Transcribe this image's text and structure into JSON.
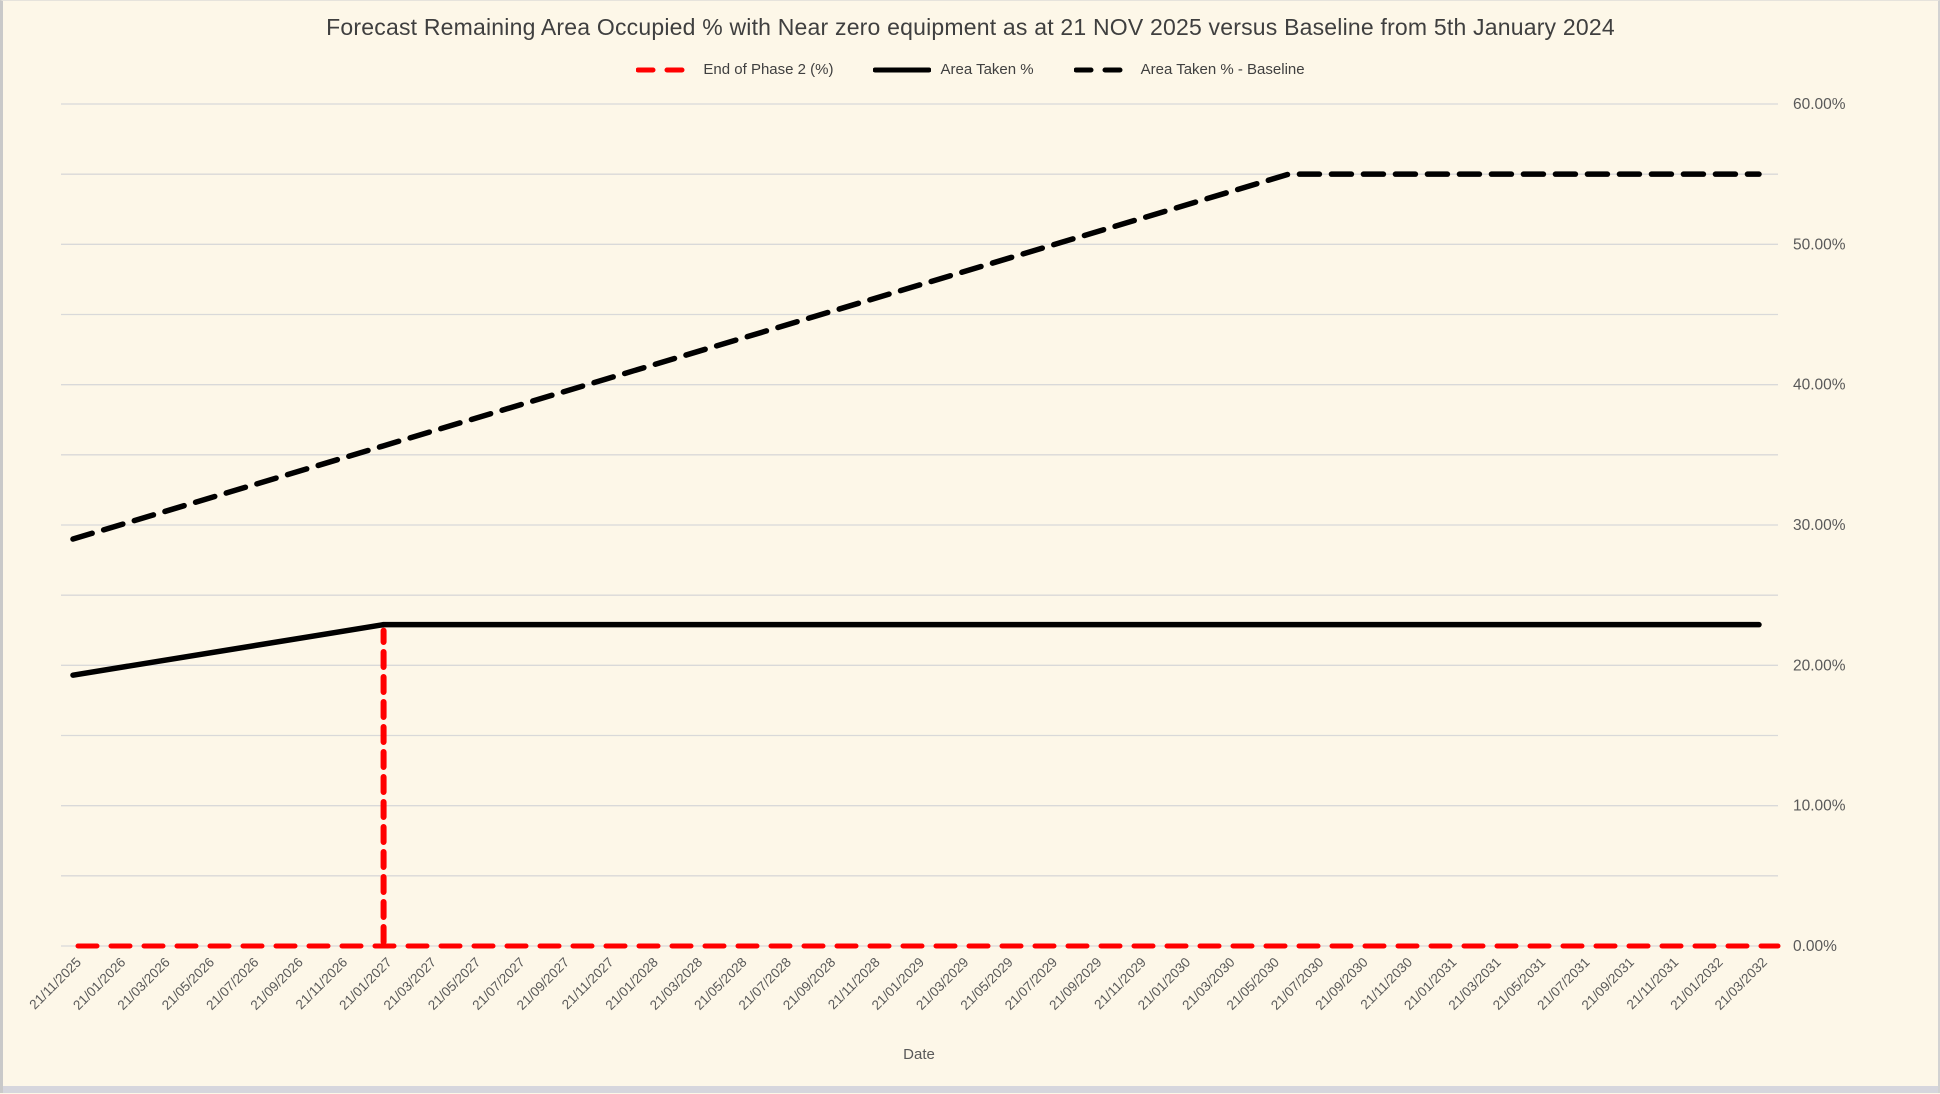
{
  "window": {
    "background": "#FDF7E8",
    "grid_color": "#D9D9D9",
    "axis_text_color": "#595959",
    "title_color": "#3F3F3F"
  },
  "chart_data": {
    "type": "line",
    "title": "Forecast Remaining Area Occupied % with Near zero equipment as at 21 NOV 2025 versus Baseline from 5th January 2024",
    "xlabel": "Date",
    "ylabel": "",
    "ylim": [
      0,
      60
    ],
    "grid": true,
    "gridline_step_pct": 5,
    "legend_position": "top-center",
    "y_axis_side": "right",
    "y_ticks": [
      {
        "label": "0.00%",
        "value": 0
      },
      {
        "label": "10.00%",
        "value": 10
      },
      {
        "label": "20.00%",
        "value": 20
      },
      {
        "label": "30.00%",
        "value": 30
      },
      {
        "label": "40.00%",
        "value": 40
      },
      {
        "label": "50.00%",
        "value": 50
      },
      {
        "label": "60.00%",
        "value": 60
      }
    ],
    "x_categories": [
      "21/11/2025",
      "21/01/2026",
      "21/03/2026",
      "21/05/2026",
      "21/07/2026",
      "21/09/2026",
      "21/11/2026",
      "21/01/2027",
      "21/03/2027",
      "21/05/2027",
      "21/07/2027",
      "21/09/2027",
      "21/11/2027",
      "21/01/2028",
      "21/03/2028",
      "21/05/2028",
      "21/07/2028",
      "21/09/2028",
      "21/11/2028",
      "21/01/2029",
      "21/03/2029",
      "21/05/2029",
      "21/07/2029",
      "21/09/2029",
      "21/11/2029",
      "21/01/2030",
      "21/03/2030",
      "21/05/2030",
      "21/07/2030",
      "21/09/2030",
      "21/11/2030",
      "21/01/2031",
      "21/03/2031",
      "21/05/2031",
      "21/07/2031",
      "21/09/2031",
      "21/11/2031",
      "21/01/2032",
      "21/03/2032"
    ],
    "series": [
      {
        "name": "End of Phase 2 (%)",
        "color": "#FF0000",
        "style": "dashed",
        "type": "spike",
        "base_value_pct": 0,
        "spike": {
          "date": "21/01/2027",
          "x_index": 7,
          "value_pct": 22.9
        }
      },
      {
        "name": "Area Taken %",
        "color": "#000000",
        "style": "solid",
        "type": "line",
        "points": [
          {
            "date": "21/11/2025",
            "x_index": 0,
            "value_pct": 19.3
          },
          {
            "date": "21/01/2027",
            "x_index": 7,
            "value_pct": 22.9
          },
          {
            "date": "21/03/2032",
            "x_index": 38,
            "value_pct": 22.9
          }
        ]
      },
      {
        "name": "Area Taken % - Baseline",
        "color": "#000000",
        "style": "dashed",
        "type": "line",
        "points": [
          {
            "date": "21/11/2025",
            "x_index": 0,
            "value_pct": 29.0
          },
          {
            "date": "~21/06/2030",
            "x_index": 27.4,
            "value_pct": 55.0
          },
          {
            "date": "21/03/2032",
            "x_index": 38,
            "value_pct": 55.0
          }
        ]
      }
    ]
  }
}
